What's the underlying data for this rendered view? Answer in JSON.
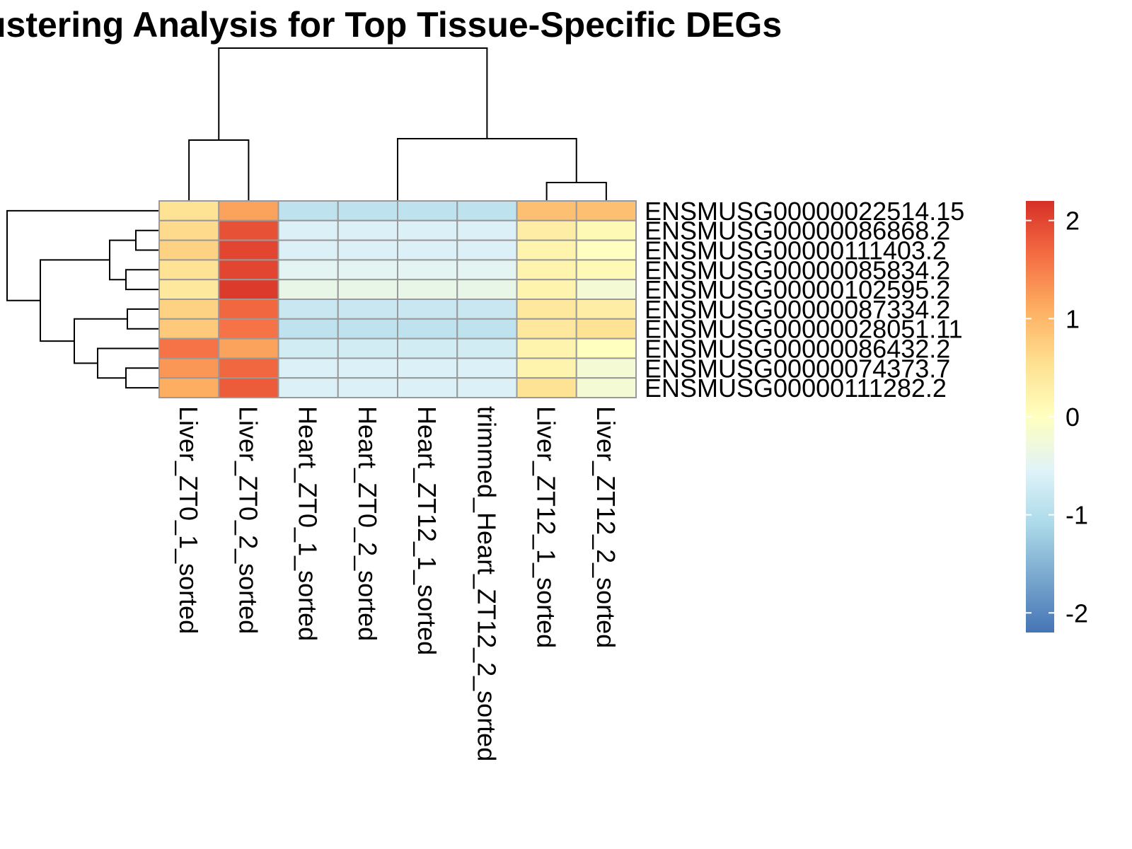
{
  "chart_data": {
    "type": "heatmap",
    "title": "ustering Analysis for Top Tissue-Specific DEGs",
    "columns": [
      "Liver_ZT0_1_sorted",
      "Liver_ZT0_2_sorted",
      "Heart_ZT0_1_sorted",
      "Heart_ZT0_2_sorted",
      "Heart_ZT12_1_sorted",
      "trimmed_Heart_ZT12_2_sorted",
      "Liver_ZT12_1_sorted",
      "Liver_ZT12_2_sorted"
    ],
    "rows": [
      "ENSMUSG00000022514.15",
      "ENSMUSG00000086868.2",
      "ENSMUSG00000111403.2",
      "ENSMUSG00000085834.2",
      "ENSMUSG00000102595.2",
      "ENSMUSG00000087334.2",
      "ENSMUSG00000028051.11",
      "ENSMUSG00000086432.2",
      "ENSMUSG00000074373.7",
      "ENSMUSG00000111282.2"
    ],
    "values": [
      [
        0.5,
        1.2,
        -0.9,
        -0.9,
        -0.9,
        -0.9,
        0.9,
        0.9
      ],
      [
        0.6,
        1.9,
        -0.6,
        -0.6,
        -0.6,
        -0.6,
        0.3,
        0.1
      ],
      [
        0.7,
        2.0,
        -0.6,
        -0.6,
        -0.6,
        -0.6,
        0.2,
        0.0
      ],
      [
        0.5,
        2.0,
        -0.5,
        -0.5,
        -0.5,
        -0.5,
        0.2,
        0.1
      ],
      [
        0.4,
        2.1,
        -0.4,
        -0.4,
        -0.4,
        -0.4,
        0.2,
        -0.2
      ],
      [
        0.7,
        1.7,
        -0.8,
        -0.8,
        -0.8,
        -0.8,
        0.4,
        0.3
      ],
      [
        0.8,
        1.6,
        -0.9,
        -0.9,
        -0.9,
        -0.9,
        0.4,
        0.5
      ],
      [
        1.6,
        1.2,
        -0.7,
        -0.7,
        -0.7,
        -0.7,
        0.2,
        0.0
      ],
      [
        1.3,
        1.7,
        -0.6,
        -0.6,
        -0.6,
        -0.6,
        0.2,
        -0.2
      ],
      [
        1.1,
        1.8,
        -0.6,
        -0.6,
        -0.6,
        -0.6,
        0.5,
        -0.2
      ]
    ],
    "color_scale": {
      "min": -2.2,
      "max": 2.2,
      "stops": [
        {
          "value": -2.2,
          "color": "#4575B4"
        },
        {
          "value": -1.1,
          "color": "#ABD9E9"
        },
        {
          "value": -0.55,
          "color": "#E0F3F8"
        },
        {
          "value": 0.0,
          "color": "#FFFFBF"
        },
        {
          "value": 0.55,
          "color": "#FEE090"
        },
        {
          "value": 1.1,
          "color": "#FDAE61"
        },
        {
          "value": 1.65,
          "color": "#F46D43"
        },
        {
          "value": 2.2,
          "color": "#D73027"
        }
      ],
      "ticks": [
        2,
        1,
        0,
        -1,
        -2
      ],
      "tick_labels": [
        "2",
        "1",
        "0",
        "-1",
        "-2"
      ]
    },
    "cell_border_color": "#999999",
    "dendrogram_color": "#000000"
  }
}
